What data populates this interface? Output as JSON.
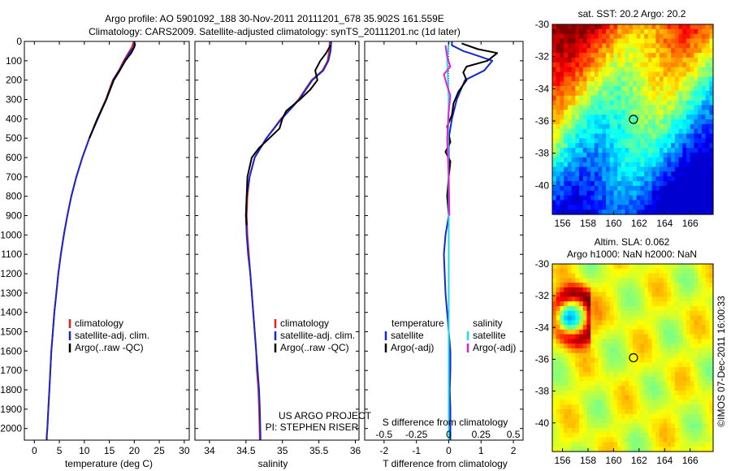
{
  "header": {
    "title_line1": "Argo profile: AO 5901092_188 30-Nov-2011 20111201_678 35.902S 161.559E",
    "title_line2": "Climatology: CARS2009. Satellite-adjusted climatology: synTS_20111201.nc (1d later)"
  },
  "side_stamp": "©IMOS 07-Dec-2011 16:00:33",
  "colors": {
    "climatology": "#e8201c",
    "satellite": "#1428d2",
    "argo": "#000000",
    "sat_salinity": "#22d8e8",
    "argo_salinity": "#e020d8"
  },
  "chart_data": [
    {
      "id": "temperature",
      "type": "line",
      "xlabel": "temperature (deg C)",
      "x_ticks": [
        0,
        5,
        10,
        15,
        20,
        25,
        30
      ],
      "xlim": [
        -2,
        31
      ],
      "y_ticks": [
        0,
        100,
        200,
        300,
        400,
        500,
        600,
        700,
        800,
        900,
        1000,
        1100,
        1200,
        1300,
        1400,
        1500,
        1600,
        1700,
        1800,
        1900,
        2000
      ],
      "ylim": [
        2060,
        0
      ],
      "legend": [
        "climatology",
        "satellite-adj. clim.",
        "Argo(..raw -QC)"
      ],
      "series": [
        {
          "name": "climatology",
          "color": "#e8201c",
          "x": [
            19.9,
            19.5,
            18.8,
            17.9,
            16.9,
            15.7,
            14.3,
            12.6,
            11.0,
            9.6,
            8.4,
            7.4,
            6.6,
            5.9,
            5.3,
            4.8,
            4.4,
            4.0,
            3.7,
            3.4,
            3.2,
            3.0,
            2.8,
            2.7,
            2.6,
            2.5,
            2.4
          ],
          "depth": [
            0,
            30,
            60,
            100,
            150,
            200,
            300,
            400,
            500,
            600,
            700,
            800,
            900,
            1000,
            1100,
            1200,
            1300,
            1400,
            1500,
            1600,
            1700,
            1800,
            1900,
            1950,
            2000,
            2030,
            2060
          ]
        },
        {
          "name": "satellite-adj. clim.",
          "color": "#1428d2",
          "x": [
            20.1,
            19.9,
            19.0,
            18.1,
            17.0,
            15.8,
            14.4,
            12.7,
            11.0,
            9.6,
            8.4,
            7.4,
            6.6,
            5.9,
            5.3,
            4.8,
            4.4,
            4.0,
            3.7,
            3.4,
            3.2,
            3.0,
            2.8,
            2.7,
            2.6,
            2.5,
            2.5
          ],
          "depth": [
            0,
            30,
            60,
            100,
            150,
            200,
            300,
            400,
            500,
            600,
            700,
            800,
            900,
            1000,
            1100,
            1200,
            1300,
            1400,
            1500,
            1600,
            1700,
            1800,
            1900,
            1950,
            2000,
            2030,
            2060
          ]
        },
        {
          "name": "Argo(..raw -QC)",
          "color": "#000000",
          "x": [
            20.2,
            20.0,
            19.4,
            18.2,
            17.1,
            15.9,
            14.4,
            12.6,
            11.0
          ],
          "depth": [
            10,
            30,
            60,
            100,
            150,
            200,
            300,
            400,
            500
          ]
        }
      ]
    },
    {
      "id": "salinity",
      "type": "line",
      "xlabel": "salinity",
      "x_ticks": [
        34,
        34.5,
        35,
        35.5,
        36
      ],
      "xlim": [
        33.8,
        36.05
      ],
      "y_ticks": [
        0,
        100,
        200,
        300,
        400,
        500,
        600,
        700,
        800,
        900,
        1000,
        1100,
        1200,
        1300,
        1400,
        1500,
        1600,
        1700,
        1800,
        1900,
        2000
      ],
      "ylim": [
        2060,
        0
      ],
      "legend": [
        "climatology",
        "satellite-adj. clim.",
        "Argo(..raw -QC)"
      ],
      "annotation": [
        "US ARGO PROJECT",
        "PI: STEPHEN RISER"
      ],
      "series": [
        {
          "name": "climatology",
          "color": "#e8201c",
          "x": [
            35.65,
            35.64,
            35.62,
            35.55,
            35.4,
            35.22,
            34.98,
            34.78,
            34.62,
            34.55,
            34.52,
            34.51,
            34.52,
            34.54,
            34.56,
            34.58,
            34.6,
            34.62,
            34.64,
            34.65,
            34.67,
            34.68,
            34.69
          ],
          "depth": [
            0,
            50,
            100,
            150,
            200,
            300,
            400,
            500,
            600,
            700,
            800,
            900,
            1000,
            1100,
            1200,
            1300,
            1400,
            1500,
            1600,
            1700,
            1800,
            1900,
            2060
          ]
        },
        {
          "name": "satellite-adj. clim.",
          "color": "#1428d2",
          "x": [
            35.67,
            35.66,
            35.63,
            35.56,
            35.41,
            35.23,
            34.99,
            34.78,
            34.62,
            34.55,
            34.51,
            34.5,
            34.51,
            34.53,
            34.56,
            34.58,
            34.6,
            34.62,
            34.64,
            34.66,
            34.68,
            34.69,
            34.7
          ],
          "depth": [
            0,
            50,
            100,
            150,
            200,
            300,
            400,
            500,
            600,
            700,
            800,
            900,
            1000,
            1100,
            1200,
            1300,
            1400,
            1500,
            1600,
            1700,
            1800,
            1900,
            2060
          ]
        },
        {
          "name": "Argo(..raw -QC)",
          "color": "#000000",
          "x": [
            35.66,
            35.6,
            35.52,
            35.45,
            35.48,
            35.38,
            35.24,
            35.05,
            35.0,
            34.96,
            34.82,
            34.68,
            34.58,
            34.55,
            34.52,
            34.51,
            34.5,
            34.51
          ],
          "depth": [
            20,
            60,
            100,
            150,
            200,
            250,
            300,
            360,
            400,
            450,
            500,
            550,
            600,
            650,
            700,
            800,
            900,
            950
          ]
        }
      ]
    },
    {
      "id": "difference",
      "type": "line",
      "xlabel": "T difference from climatology",
      "x_ticks": [
        -2,
        -1,
        0,
        1,
        2
      ],
      "xlim": [
        -2.6,
        2.3
      ],
      "s_axis_label": "S difference from climatology",
      "s_ticks": [
        "-0.5",
        "-0.25",
        "0",
        "0.25",
        "0.5"
      ],
      "s_ticks_at_T": [
        -2,
        -1,
        0,
        1,
        2
      ],
      "y_ticks": [
        0,
        100,
        200,
        300,
        400,
        500,
        600,
        700,
        800,
        900,
        1000,
        1100,
        1200,
        1300,
        1400,
        1500,
        1600,
        1700,
        1800,
        1900,
        2000
      ],
      "ylim": [
        2060,
        0
      ],
      "legend_titles": [
        "temperature",
        "salinity"
      ],
      "legend": [
        "satellite",
        "Argo(-adj)",
        "satellite",
        "Argo(-adj)"
      ],
      "series": [
        {
          "name": "satellite",
          "color": "#1428d2",
          "x": [
            0.1,
            0.1,
            0.45,
            0.65,
            1.35,
            1.1,
            0.5,
            0.25,
            0.1,
            0.0,
            0.0,
            0.0,
            0.0,
            0.0,
            -0.1,
            -0.15,
            -0.1,
            0.0,
            0.05,
            0.05,
            0.03,
            0.05,
            0.05
          ],
          "depth": [
            0,
            20,
            50,
            60,
            100,
            150,
            200,
            300,
            400,
            500,
            600,
            700,
            800,
            900,
            1000,
            1100,
            1300,
            1500,
            1600,
            1700,
            1800,
            1900,
            2060
          ]
        },
        {
          "name": "Argo(-adj)",
          "color": "#000000",
          "x": [
            0.4,
            0.9,
            1.5,
            1.2,
            0.55,
            0.45,
            0.55,
            0.3,
            0.15,
            0.1,
            -0.05,
            0.05,
            -0.1,
            0.05,
            0.0,
            -0.05,
            0.0
          ],
          "depth": [
            10,
            40,
            60,
            100,
            130,
            160,
            200,
            260,
            320,
            380,
            440,
            520,
            570,
            620,
            700,
            800,
            900
          ]
        },
        {
          "name": "satellite",
          "color": "#22d8e8",
          "x": [
            0.0,
            -0.05,
            0.0,
            -0.02,
            0.0,
            0.0,
            0.0,
            0.0,
            0.0
          ],
          "depth": [
            0,
            100,
            300,
            500,
            800,
            1200,
            1600,
            1900,
            2060
          ]
        },
        {
          "name": "Argo(-adj)",
          "color": "#e020d8",
          "x": [
            -0.1,
            -0.05,
            0.05,
            -0.15,
            -0.05,
            0.05,
            0.0,
            -0.05,
            0.0,
            0.02
          ],
          "depth": [
            20,
            80,
            130,
            170,
            230,
            280,
            360,
            500,
            700,
            900
          ]
        }
      ]
    },
    {
      "id": "sst_map",
      "type": "heatmap",
      "title": "sat. SST: 20.2  Argo: 20.2",
      "x_ticks": [
        156,
        158,
        160,
        162,
        164,
        166
      ],
      "y_ticks": [
        -30,
        -32,
        -34,
        -36,
        -38,
        -40
      ],
      "xlim": [
        155.2,
        167.8
      ],
      "ylim": [
        -41.8,
        -30
      ],
      "marker": {
        "lon": 161.56,
        "lat": -35.9
      }
    },
    {
      "id": "sla_map",
      "type": "heatmap",
      "title_line1": "Altim. SLA: 0.062",
      "title_line2": "Argo h1000: NaN h2000: NaN",
      "x_ticks": [
        156,
        158,
        160,
        162,
        164,
        166
      ],
      "y_ticks": [
        -30,
        -32,
        -34,
        -36,
        -38,
        -40
      ],
      "xlim": [
        155.2,
        167.8
      ],
      "ylim": [
        -41.8,
        -30
      ],
      "marker": {
        "lon": 161.56,
        "lat": -35.9
      }
    }
  ]
}
